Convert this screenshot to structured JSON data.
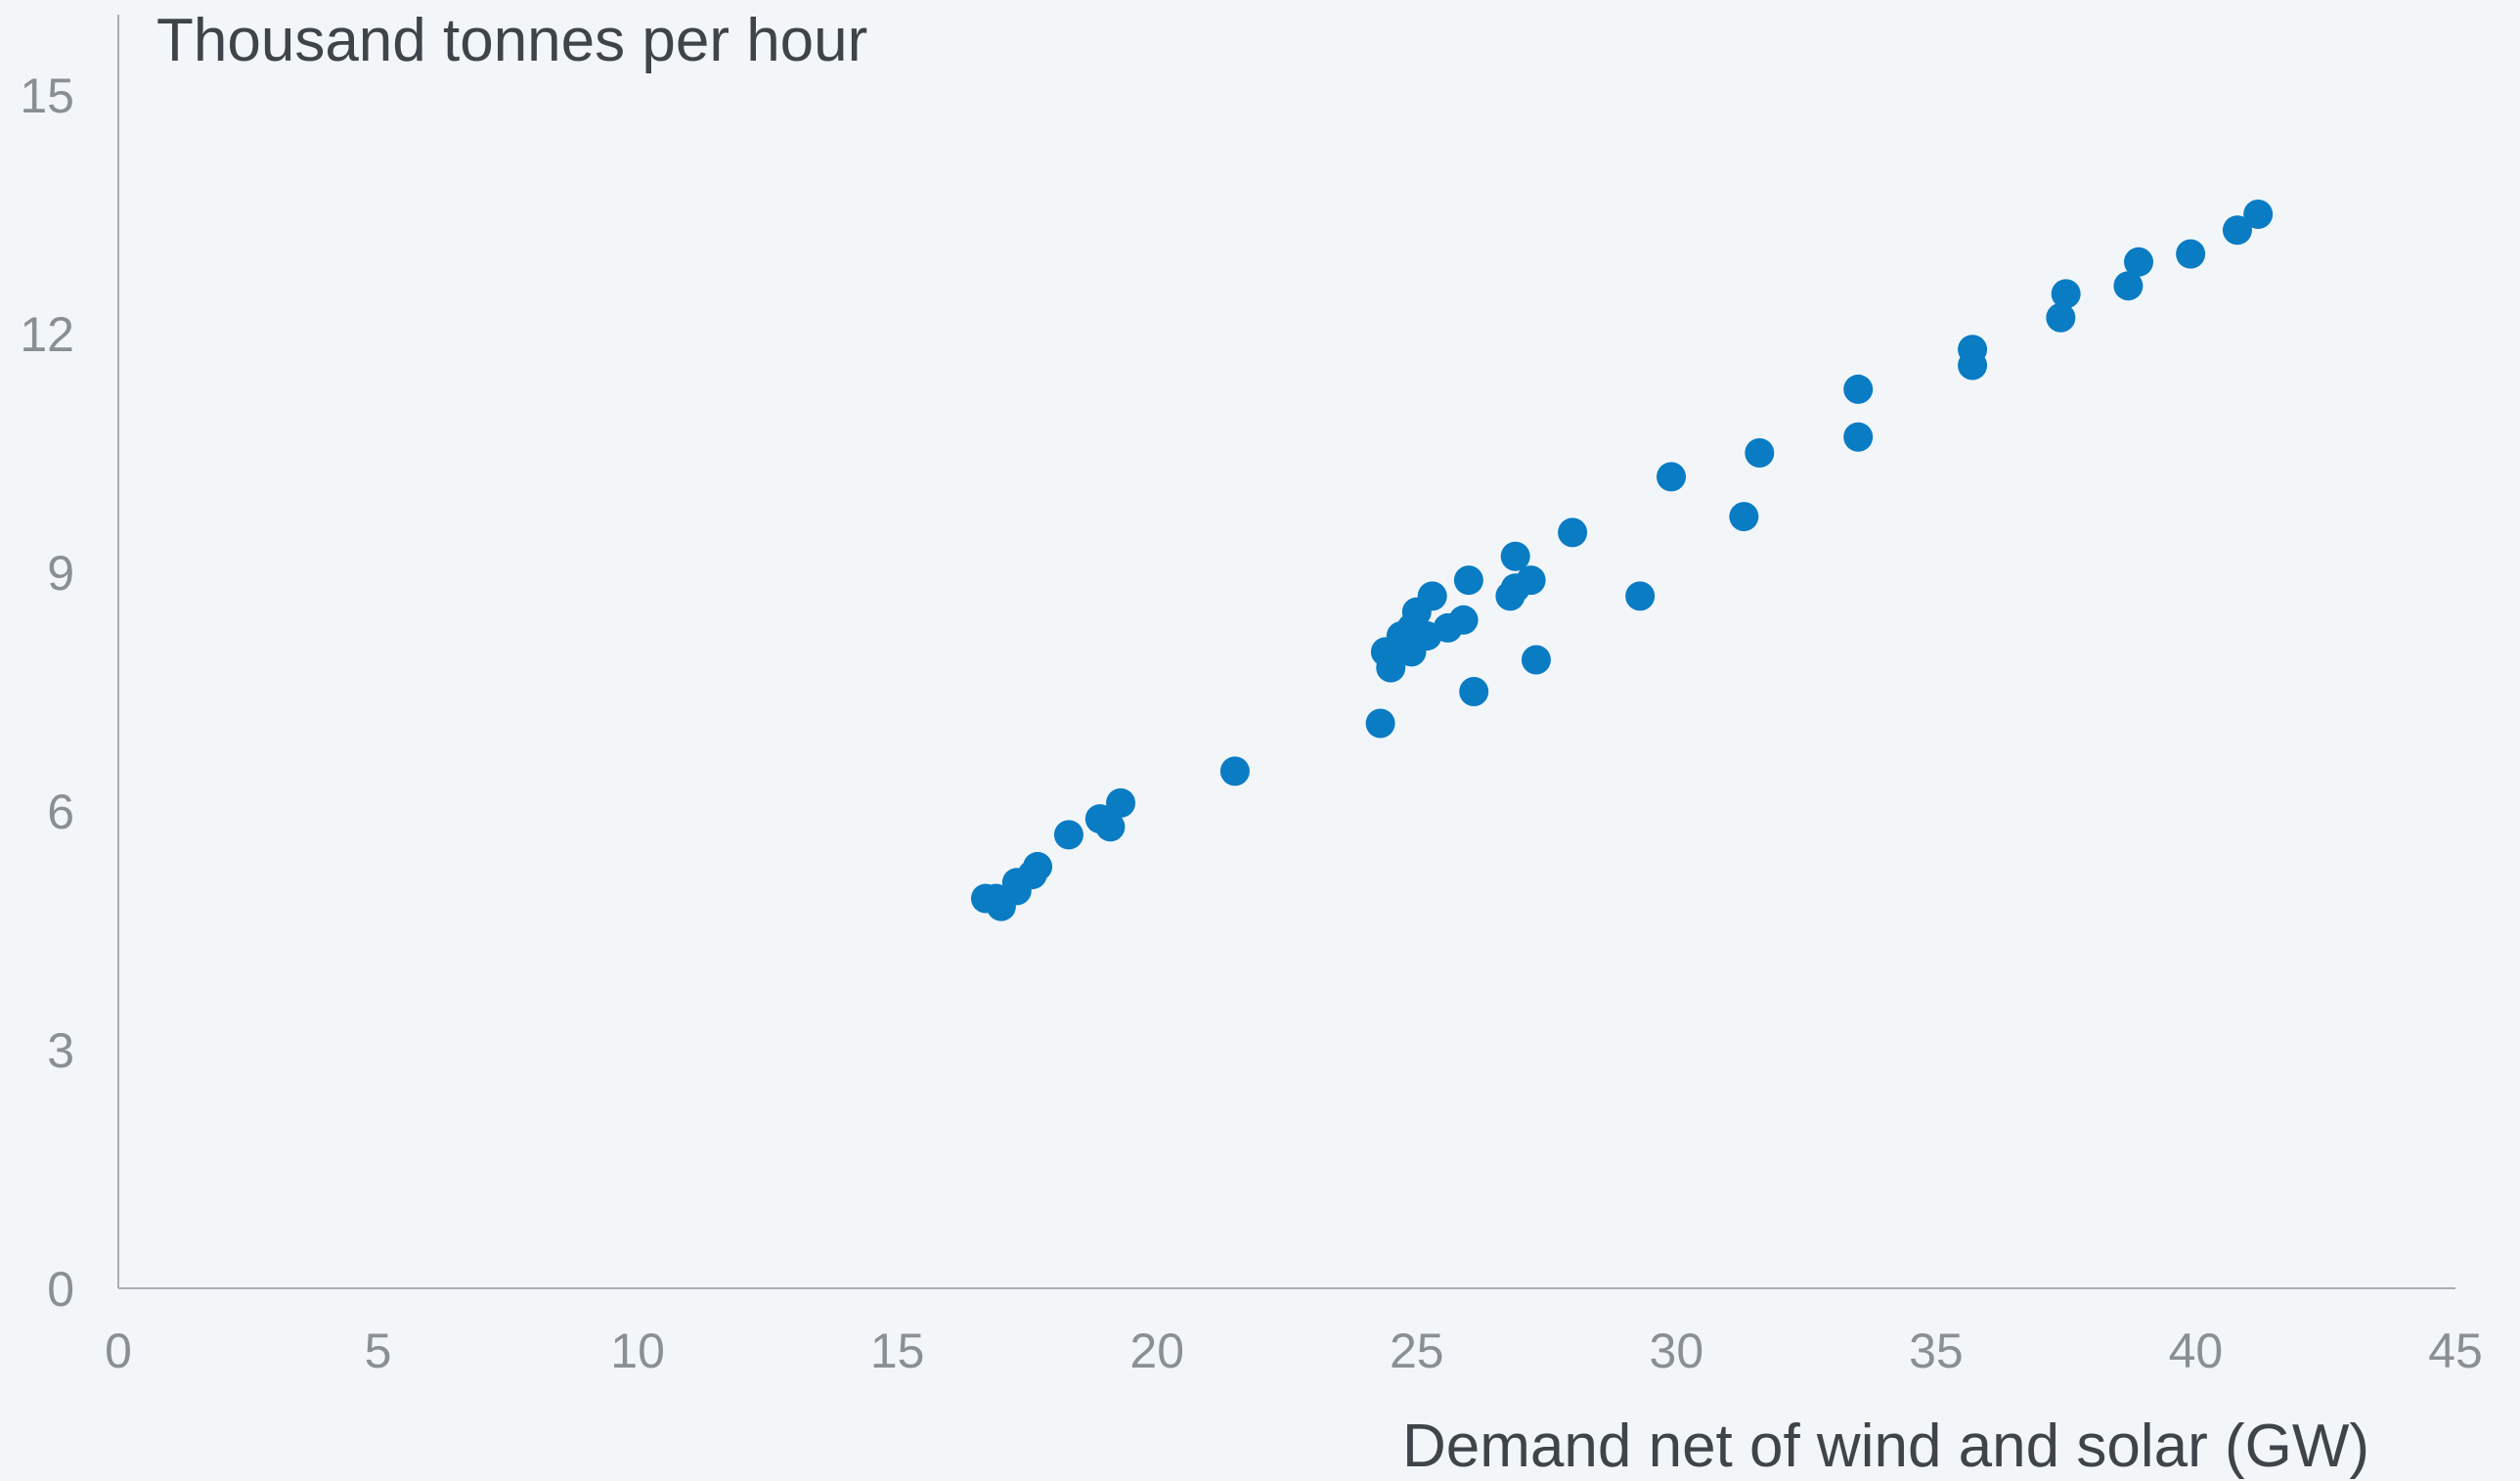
{
  "chart_data": {
    "type": "scatter",
    "title": "",
    "ylabel": "Thousand tonnes per hour",
    "xlabel": "Demand net of wind and solar (GW)",
    "xlim": [
      0,
      45
    ],
    "ylim": [
      0,
      16
    ],
    "x_ticks": [
      "0",
      "5",
      "10",
      "15",
      "20",
      "25",
      "30",
      "35",
      "40",
      "45"
    ],
    "y_ticks": [
      "0",
      "3",
      "6",
      "9",
      "12",
      "15"
    ],
    "grid": false,
    "legend": "none",
    "marker_color": "#0a7cc4",
    "series": [
      {
        "points": [
          [
            16.7,
            4.9
          ],
          [
            16.9,
            4.9
          ],
          [
            17.0,
            4.8
          ],
          [
            17.3,
            5.0
          ],
          [
            17.3,
            5.1
          ],
          [
            17.6,
            5.2
          ],
          [
            17.7,
            5.3
          ],
          [
            18.3,
            5.7
          ],
          [
            18.9,
            5.9
          ],
          [
            19.1,
            5.8
          ],
          [
            19.3,
            6.1
          ],
          [
            21.5,
            6.5
          ],
          [
            24.3,
            7.1
          ],
          [
            24.4,
            8.0
          ],
          [
            24.5,
            7.8
          ],
          [
            24.7,
            8.0
          ],
          [
            24.7,
            8.2
          ],
          [
            24.9,
            8.0
          ],
          [
            24.9,
            8.3
          ],
          [
            25.0,
            8.5
          ],
          [
            25.2,
            8.2
          ],
          [
            25.3,
            8.7
          ],
          [
            25.6,
            8.3
          ],
          [
            25.9,
            8.4
          ],
          [
            26.0,
            8.9
          ],
          [
            26.1,
            7.5
          ],
          [
            26.8,
            8.7
          ],
          [
            26.9,
            8.8
          ],
          [
            26.9,
            9.2
          ],
          [
            27.2,
            8.9
          ],
          [
            27.3,
            7.9
          ],
          [
            28.0,
            9.5
          ],
          [
            29.3,
            8.7
          ],
          [
            29.9,
            10.2
          ],
          [
            31.3,
            9.7
          ],
          [
            31.6,
            10.5
          ],
          [
            33.5,
            10.7
          ],
          [
            33.5,
            11.3
          ],
          [
            35.7,
            11.6
          ],
          [
            35.7,
            11.8
          ],
          [
            37.4,
            12.2
          ],
          [
            37.5,
            12.5
          ],
          [
            38.7,
            12.6
          ],
          [
            38.9,
            12.9
          ],
          [
            39.9,
            13.0
          ],
          [
            40.8,
            13.3
          ],
          [
            41.2,
            13.5
          ]
        ]
      }
    ]
  }
}
